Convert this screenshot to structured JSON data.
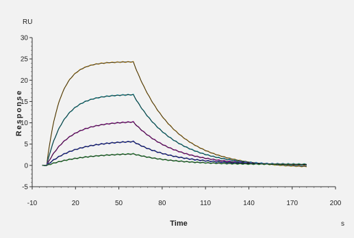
{
  "chart_data": {
    "type": "line",
    "xlabel": "Time",
    "xunit": "s",
    "ylabel": "Response",
    "yunit": "RU",
    "xlim": [
      -10,
      200
    ],
    "ylim": [
      -5,
      30
    ],
    "xticks": [
      -10,
      20,
      50,
      80,
      110,
      140,
      170,
      200
    ],
    "yticks": [
      -5,
      0,
      5,
      10,
      15,
      20,
      25,
      30
    ],
    "grid": false,
    "injection_start": 0,
    "dissociation_start": 60,
    "end_time": 180,
    "series": [
      {
        "color": "#e0b040",
        "fit_color": "#1a1a1a",
        "plateau": 24.3,
        "kon_obs": 0.11,
        "koff": 0.036,
        "end": -0.6
      },
      {
        "color": "#20a8b0",
        "fit_color": "#1a1a1a",
        "plateau": 16.6,
        "kon_obs": 0.085,
        "koff": 0.036,
        "end": -0.2
      },
      {
        "color": "#b020b0",
        "fit_color": "#1a1a1a",
        "plateau": 10.2,
        "kon_obs": 0.065,
        "koff": 0.036,
        "end": 0.0
      },
      {
        "color": "#2030c0",
        "fit_color": "#1a1a1a",
        "plateau": 5.6,
        "kon_obs": 0.05,
        "koff": 0.036,
        "end": 0.2
      },
      {
        "color": "#30a040",
        "fit_color": "#1a1a1a",
        "plateau": 2.7,
        "kon_obs": 0.04,
        "koff": 0.036,
        "end": 0.2
      }
    ]
  }
}
